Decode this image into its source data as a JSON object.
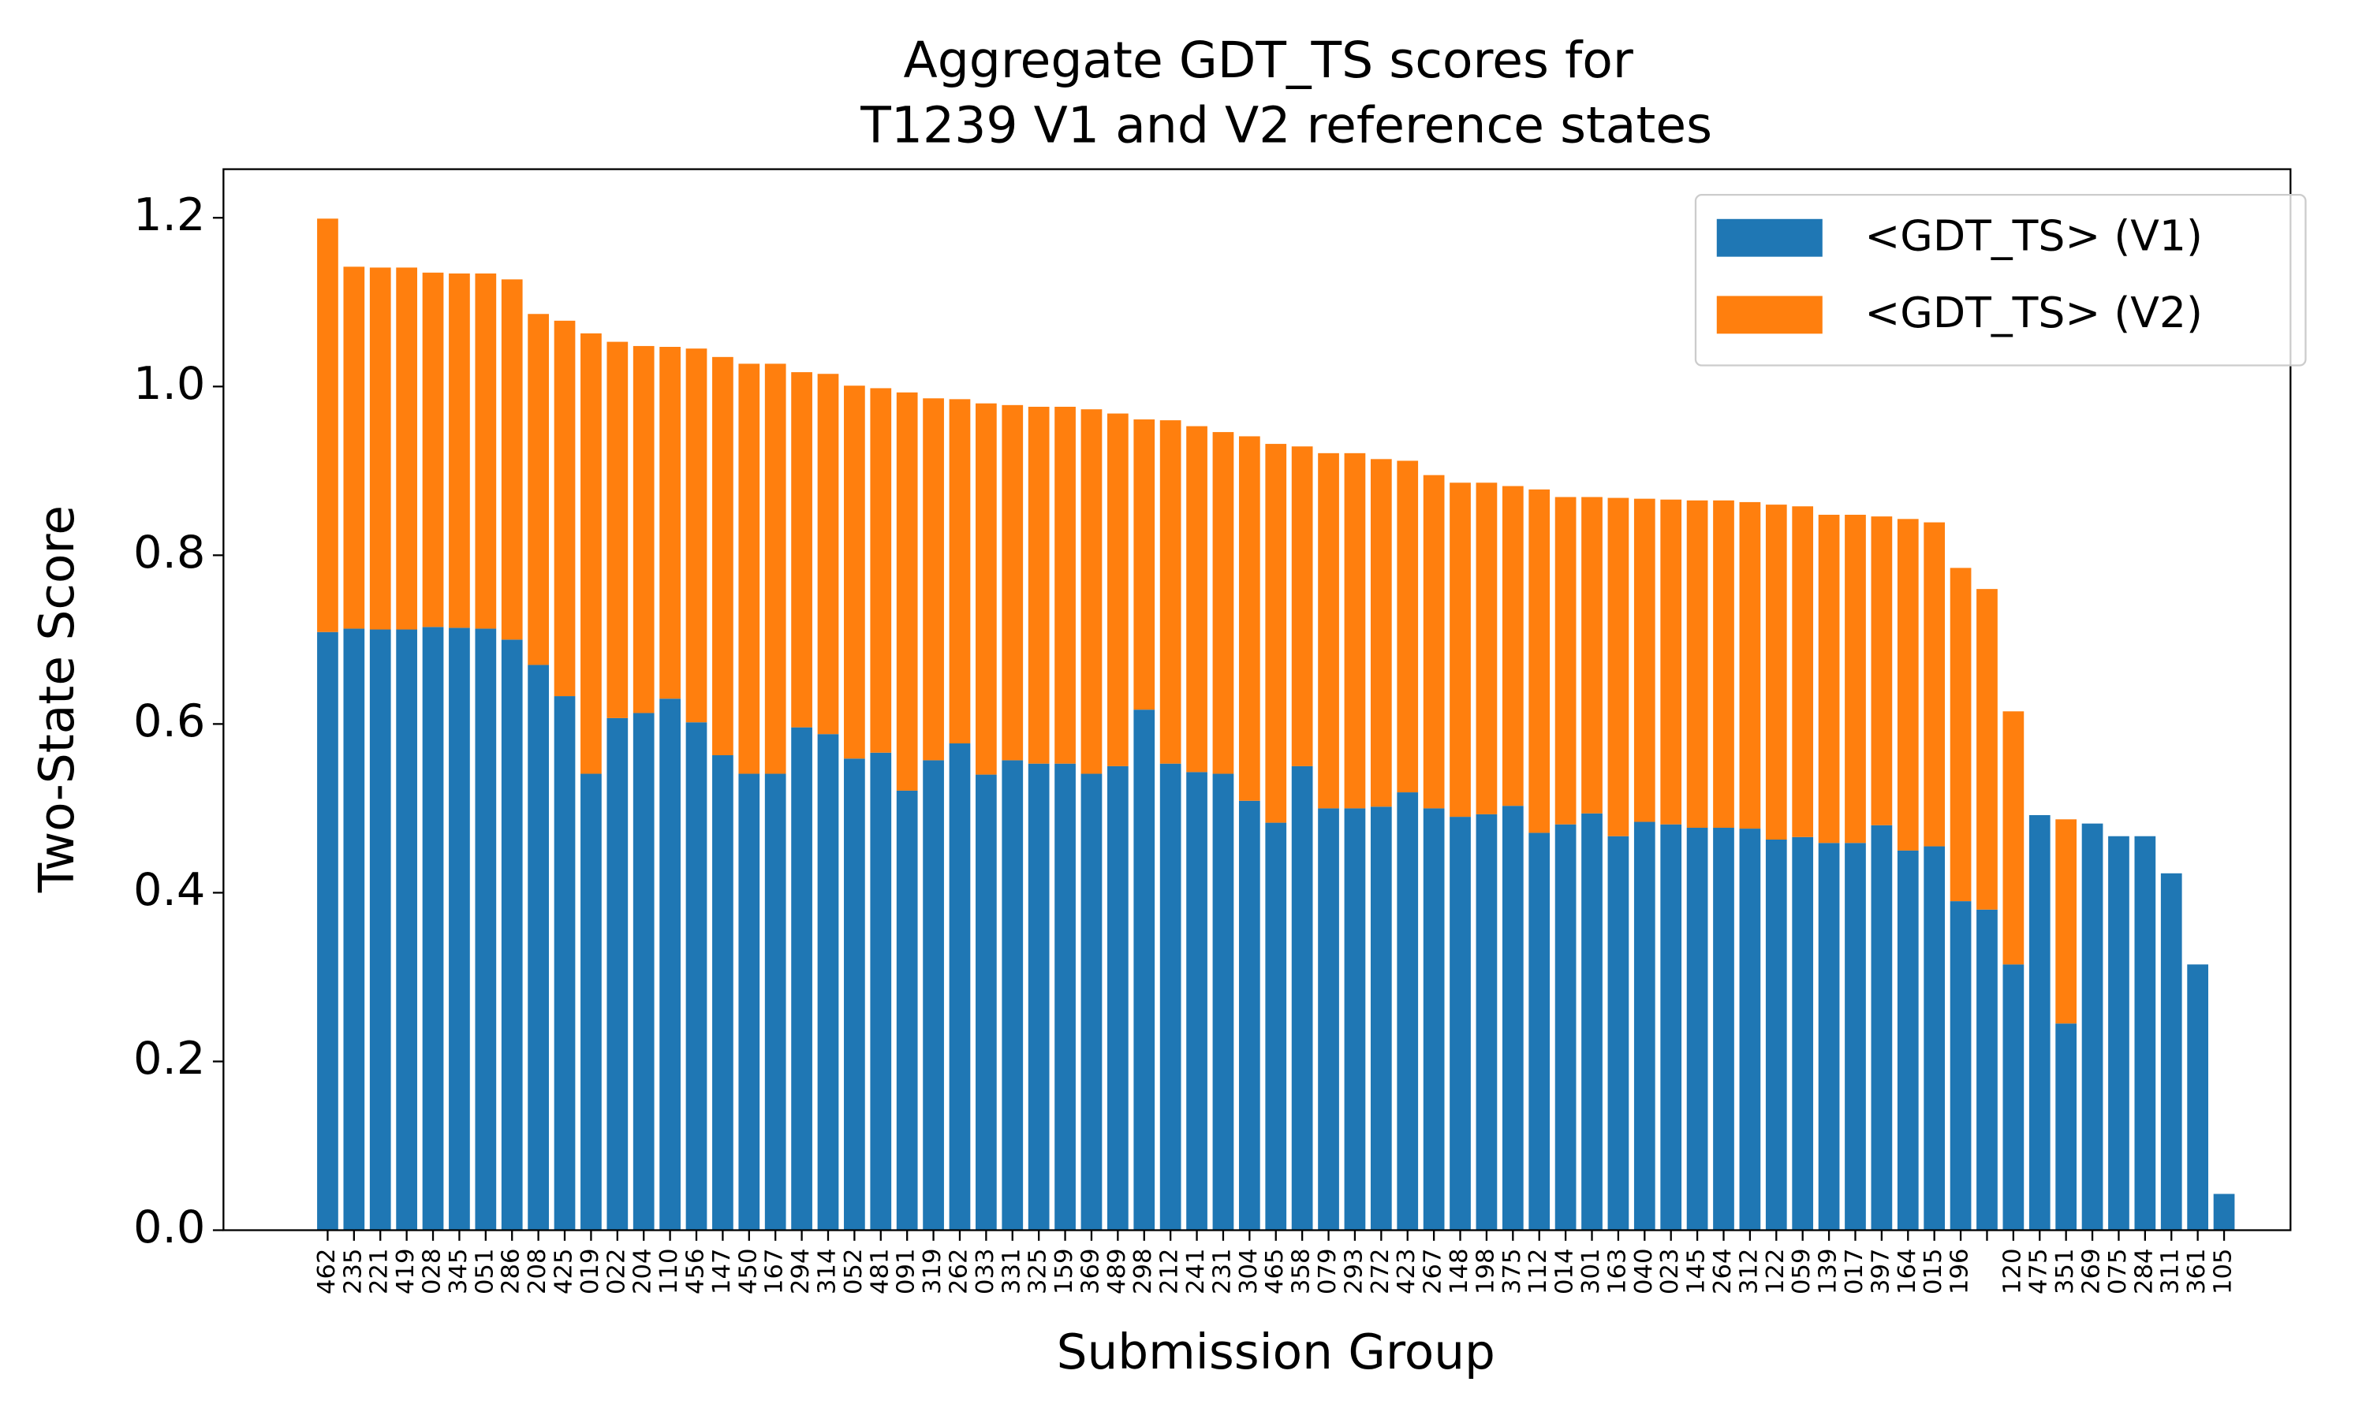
{
  "chart_data": {
    "type": "stacked_bar",
    "title": [
      "Aggregate GDT_TS scores for",
      "T1239 V1 and V2 reference states"
    ],
    "x_label": "Submission Group",
    "y_label": "Two-State Score",
    "categories": [
      "462",
      "235",
      "221",
      "419",
      "028",
      "345",
      "051",
      "286",
      "208",
      "425",
      "019",
      "022",
      "204",
      "110",
      "456",
      "147",
      "450",
      "167",
      "294",
      "314",
      "052",
      "481",
      "091",
      "319",
      "262",
      "033",
      "331",
      "325",
      "159",
      "369",
      "489",
      "298",
      "212",
      "241",
      "231",
      "304",
      "465",
      "358",
      "079",
      "293",
      "272",
      "423",
      "267",
      "148",
      "198",
      "375",
      "112",
      "014",
      "301",
      "163",
      "040",
      "023",
      "145",
      "264",
      "312",
      "122",
      "059",
      "139",
      "017",
      "397",
      "164",
      "015",
      "196",
      null,
      "120",
      "475",
      "351",
      "269",
      "075",
      "284",
      "311",
      "361",
      "105"
    ],
    "series": [
      {
        "name": "<GDT_TS> (V1)",
        "color": "#1f77b4",
        "values": [
          0.709,
          0.713,
          0.712,
          0.712,
          0.715,
          0.714,
          0.713,
          0.7,
          0.67,
          0.633,
          0.541,
          0.607,
          0.613,
          0.63,
          0.602,
          0.563,
          0.541,
          0.541,
          0.596,
          0.588,
          0.559,
          0.566,
          0.521,
          0.557,
          0.577,
          0.54,
          0.557,
          0.553,
          0.553,
          0.541,
          0.55,
          0.617,
          0.553,
          0.543,
          0.541,
          0.509,
          0.483,
          0.55,
          0.5,
          0.5,
          0.502,
          0.519,
          0.5,
          0.49,
          0.493,
          0.503,
          0.471,
          0.481,
          0.494,
          0.467,
          0.484,
          0.481,
          0.477,
          0.477,
          0.476,
          0.463,
          0.466,
          0.459,
          0.459,
          0.48,
          0.45,
          0.455,
          0.39,
          0.38,
          0.315,
          0.492,
          0.245,
          0.482,
          0.467,
          0.467,
          0.423,
          0.315,
          0.043
        ]
      },
      {
        "name": "<GDT_TS> (V2)",
        "color": "#ff7f0e",
        "values": [
          0.49,
          0.429,
          0.429,
          0.429,
          0.42,
          0.42,
          0.421,
          0.427,
          0.416,
          0.445,
          0.522,
          0.446,
          0.435,
          0.417,
          0.443,
          0.472,
          0.486,
          0.486,
          0.421,
          0.427,
          0.442,
          0.432,
          0.472,
          0.429,
          0.408,
          0.44,
          0.421,
          0.423,
          0.423,
          0.432,
          0.418,
          0.344,
          0.407,
          0.41,
          0.405,
          0.432,
          0.449,
          0.379,
          0.421,
          0.421,
          0.412,
          0.393,
          0.395,
          0.396,
          0.393,
          0.379,
          0.407,
          0.388,
          0.375,
          0.401,
          0.383,
          0.385,
          0.388,
          0.388,
          0.387,
          0.397,
          0.392,
          0.389,
          0.389,
          0.366,
          0.393,
          0.384,
          0.395,
          0.38,
          0.3,
          0,
          0.242,
          0,
          0,
          0,
          0,
          0,
          0
        ]
      }
    ],
    "ylim": [
      0,
      1.2576
    ],
    "yticks": [
      {
        "value": 0,
        "label": "0.0"
      },
      0.2,
      0.4,
      0.6,
      0.8,
      {
        "value": 1,
        "label": "1.0"
      },
      1.2
    ],
    "legend": "upper right"
  }
}
